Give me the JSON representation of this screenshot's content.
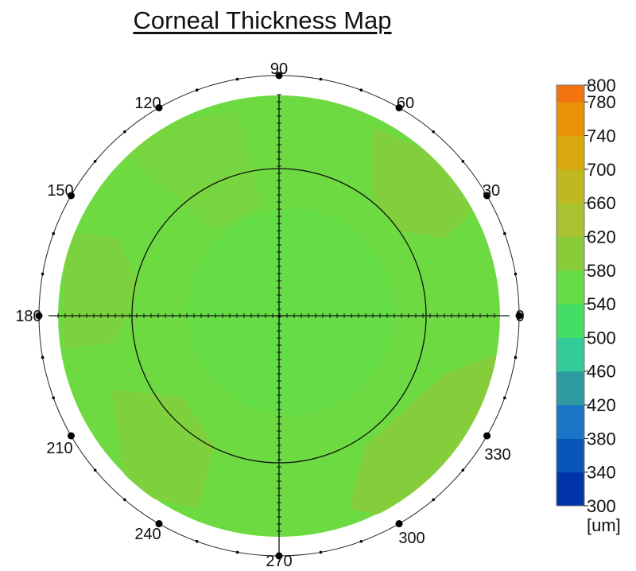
{
  "chart_data": {
    "type": "heatmap",
    "subtype": "polar-map",
    "title": "Corneal Thickness Map",
    "angle_labels": [
      "0",
      "30",
      "60",
      "90",
      "120",
      "150",
      "180",
      "210",
      "240",
      "270",
      "300",
      "330"
    ],
    "colorbar": {
      "unit": "[um]",
      "range": [
        300,
        800
      ],
      "ticks": [
        "800",
        "780",
        "740",
        "700",
        "660",
        "620",
        "580",
        "540",
        "500",
        "460",
        "420",
        "380",
        "340",
        "300"
      ],
      "stops": [
        {
          "value": 300,
          "color": "#0033aa"
        },
        {
          "value": 340,
          "color": "#0a55b8"
        },
        {
          "value": 380,
          "color": "#1a75c6"
        },
        {
          "value": 420,
          "color": "#2f9aa2"
        },
        {
          "value": 460,
          "color": "#33cc99"
        },
        {
          "value": 500,
          "color": "#44dd66"
        },
        {
          "value": 540,
          "color": "#66dd44"
        },
        {
          "value": 580,
          "color": "#88cc3a"
        },
        {
          "value": 620,
          "color": "#a8c230"
        },
        {
          "value": 660,
          "color": "#c0b820"
        },
        {
          "value": 700,
          "color": "#d8a80e"
        },
        {
          "value": 740,
          "color": "#e89208"
        },
        {
          "value": 780,
          "color": "#f27410"
        },
        {
          "value": 800,
          "color": "#f85a10"
        }
      ]
    },
    "map": {
      "base_thickness": 548,
      "regions": [
        {
          "label": "upper-left periphery",
          "value": 560
        },
        {
          "label": "upper-right periphery",
          "value": 572
        },
        {
          "label": "left periphery",
          "value": 566
        },
        {
          "label": "lower-left periphery",
          "value": 568
        },
        {
          "label": "lower-right periphery",
          "value": 578
        },
        {
          "label": "central zone",
          "value": 538
        }
      ]
    },
    "grid": true
  }
}
